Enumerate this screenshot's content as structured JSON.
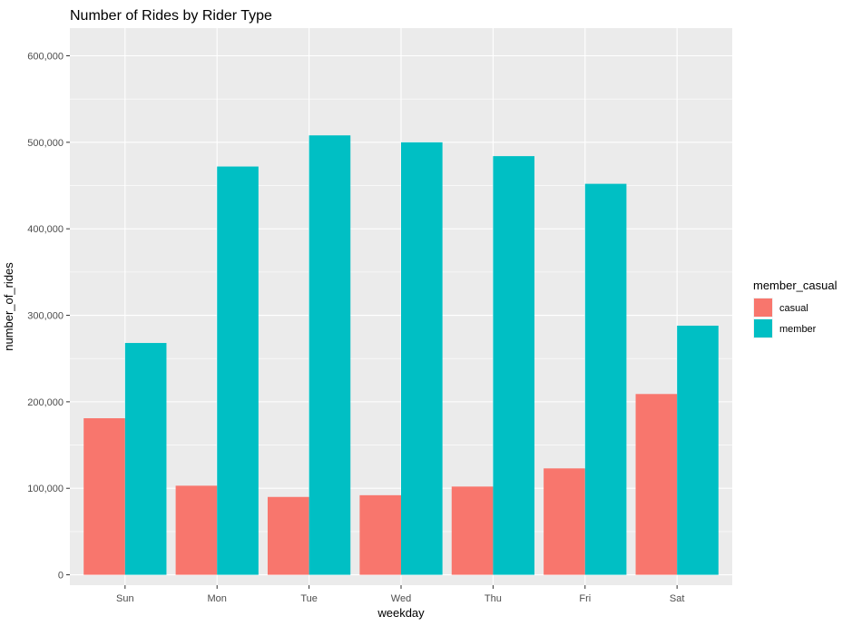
{
  "chart_data": {
    "type": "bar",
    "title": "Number of Rides by Rider Type",
    "xlabel": "weekday",
    "ylabel": "number_of_rides",
    "categories": [
      "Sun",
      "Mon",
      "Tue",
      "Wed",
      "Thu",
      "Fri",
      "Sat"
    ],
    "series": [
      {
        "name": "casual",
        "color": "#F8766D",
        "values": [
          181000,
          103000,
          90000,
          92000,
          102000,
          123000,
          209000
        ]
      },
      {
        "name": "member",
        "color": "#00BFC4",
        "values": [
          268000,
          472000,
          508000,
          500000,
          484000,
          452000,
          288000
        ]
      }
    ],
    "ylim": [
      -12000,
      632000
    ],
    "yticks": [
      0,
      100000,
      200000,
      300000,
      400000,
      500000,
      600000
    ],
    "ytick_labels": [
      "0",
      "100,000",
      "200,000",
      "300,000",
      "400,000",
      "500,000",
      "600,000"
    ],
    "grid": true,
    "background": "#EBEBEB",
    "gridline_color": "#FFFFFF",
    "legend": {
      "title": "member_casual",
      "placement": "right"
    }
  }
}
